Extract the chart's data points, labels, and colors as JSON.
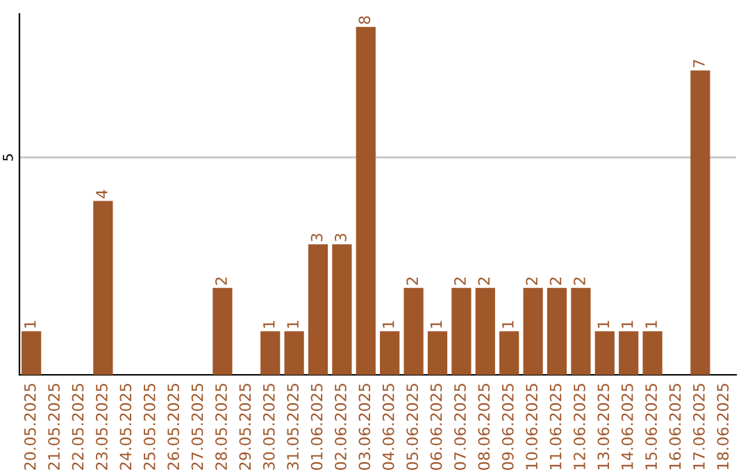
{
  "chart_data": {
    "type": "bar",
    "categories": [
      "20.05.2025",
      "21.05.2025",
      "22.05.2025",
      "23.05.2025",
      "24.05.2025",
      "25.05.2025",
      "26.05.2025",
      "27.05.2025",
      "28.05.2025",
      "29.05.2025",
      "30.05.2025",
      "31.05.2025",
      "01.06.2025",
      "02.06.2025",
      "03.06.2025",
      "04.06.2025",
      "05.06.2025",
      "06.06.2025",
      "07.06.2025",
      "08.06.2025",
      "09.06.2025",
      "10.06.2025",
      "11.06.2025",
      "12.06.2025",
      "13.06.2025",
      "14.06.2025",
      "15.06.2025",
      "16.06.2025",
      "17.06.2025",
      "18.06.2025"
    ],
    "values": [
      1,
      0,
      0,
      4,
      0,
      0,
      0,
      0,
      2,
      0,
      1,
      1,
      3,
      3,
      8,
      1,
      2,
      1,
      2,
      2,
      1,
      2,
      2,
      2,
      1,
      1,
      1,
      0,
      7,
      0
    ],
    "value_labels": [
      "1",
      null,
      null,
      "4",
      null,
      null,
      null,
      null,
      "2",
      null,
      "1",
      "1",
      "3",
      "3",
      "8",
      "1",
      "2",
      "1",
      "2",
      "2",
      "1",
      "2",
      "2",
      "2",
      "1",
      "1",
      "1",
      null,
      "7",
      null
    ],
    "color": "#a0572a",
    "ylim": [
      0,
      8.3
    ],
    "yticks": [
      5
    ],
    "grid": "y"
  }
}
